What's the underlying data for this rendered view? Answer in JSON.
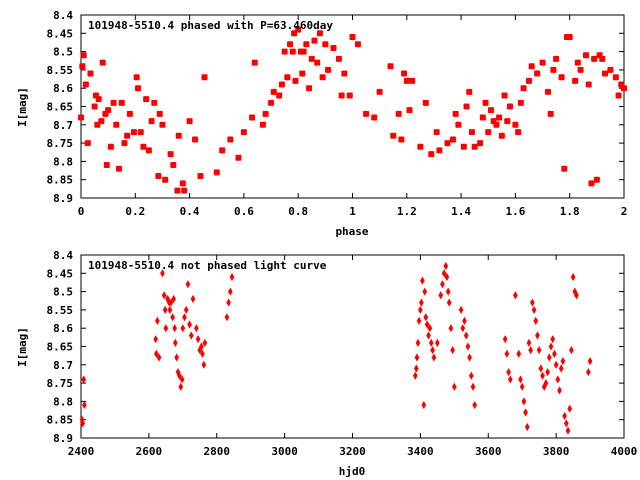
{
  "chart_data": [
    {
      "type": "scatter",
      "title": "101948-5510.4 phased with P=63.460day",
      "xlabel": "phase",
      "ylabel": "I[mag]",
      "xlim": [
        0,
        2
      ],
      "ylim": [
        8.4,
        8.9
      ],
      "y_inverted": true,
      "x_ticks": [
        "0",
        "0.2",
        "0.4",
        "0.6",
        "0.8",
        "1",
        "1.2",
        "1.4",
        "1.6",
        "1.8",
        "2"
      ],
      "y_ticks": [
        "8.4",
        "8.45",
        "8.5",
        "8.55",
        "8.6",
        "8.65",
        "8.7",
        "8.75",
        "8.8",
        "8.85",
        "8.9"
      ],
      "marker_color": "#ff0000",
      "marker_shape": "filled-square",
      "points": [
        [
          0.0,
          8.68
        ],
        [
          0.005,
          8.54
        ],
        [
          0.01,
          8.51
        ],
        [
          0.018,
          8.59
        ],
        [
          0.025,
          8.75
        ],
        [
          0.035,
          8.56
        ],
        [
          0.05,
          8.65
        ],
        [
          0.055,
          8.62
        ],
        [
          0.06,
          8.7
        ],
        [
          0.065,
          8.63
        ],
        [
          0.075,
          8.69
        ],
        [
          0.08,
          8.53
        ],
        [
          0.09,
          8.67
        ],
        [
          0.095,
          8.81
        ],
        [
          0.1,
          8.66
        ],
        [
          0.11,
          8.76
        ],
        [
          0.12,
          8.64
        ],
        [
          0.13,
          8.7
        ],
        [
          0.14,
          8.82
        ],
        [
          0.15,
          8.64
        ],
        [
          0.16,
          8.75
        ],
        [
          0.17,
          8.73
        ],
        [
          0.18,
          8.67
        ],
        [
          0.195,
          8.72
        ],
        [
          0.205,
          8.57
        ],
        [
          0.21,
          8.6
        ],
        [
          0.22,
          8.72
        ],
        [
          0.23,
          8.76
        ],
        [
          0.24,
          8.63
        ],
        [
          0.25,
          8.77
        ],
        [
          0.26,
          8.69
        ],
        [
          0.27,
          8.64
        ],
        [
          0.285,
          8.84
        ],
        [
          0.29,
          8.67
        ],
        [
          0.3,
          8.7
        ],
        [
          0.31,
          8.85
        ],
        [
          0.33,
          8.78
        ],
        [
          0.34,
          8.81
        ],
        [
          0.355,
          8.88
        ],
        [
          0.36,
          8.73
        ],
        [
          0.375,
          8.86
        ],
        [
          0.38,
          8.88
        ],
        [
          0.4,
          8.69
        ],
        [
          0.42,
          8.74
        ],
        [
          0.44,
          8.84
        ],
        [
          0.455,
          8.57
        ],
        [
          0.5,
          8.83
        ],
        [
          0.52,
          8.77
        ],
        [
          0.55,
          8.74
        ],
        [
          0.58,
          8.79
        ],
        [
          0.6,
          8.72
        ],
        [
          0.63,
          8.68
        ],
        [
          0.64,
          8.53
        ],
        [
          0.67,
          8.7
        ],
        [
          0.68,
          8.67
        ],
        [
          0.7,
          8.64
        ],
        [
          0.71,
          8.61
        ],
        [
          0.73,
          8.62
        ],
        [
          0.74,
          8.59
        ],
        [
          0.75,
          8.5
        ],
        [
          0.76,
          8.57
        ],
        [
          0.77,
          8.48
        ],
        [
          0.78,
          8.5
        ],
        [
          0.785,
          8.45
        ],
        [
          0.79,
          8.58
        ],
        [
          0.8,
          8.44
        ],
        [
          0.81,
          8.5
        ],
        [
          0.815,
          8.56
        ],
        [
          0.82,
          8.5
        ],
        [
          0.83,
          8.48
        ],
        [
          0.84,
          8.6
        ],
        [
          0.85,
          8.52
        ],
        [
          0.86,
          8.47
        ],
        [
          0.87,
          8.53
        ],
        [
          0.88,
          8.45
        ],
        [
          0.89,
          8.57
        ],
        [
          0.9,
          8.48
        ],
        [
          0.91,
          8.55
        ],
        [
          0.93,
          8.49
        ],
        [
          0.95,
          8.52
        ],
        [
          0.96,
          8.62
        ],
        [
          0.97,
          8.56
        ],
        [
          0.99,
          8.62
        ],
        [
          1.0,
          8.46
        ],
        [
          1.02,
          8.48
        ],
        [
          1.05,
          8.67
        ],
        [
          1.08,
          8.68
        ],
        [
          1.1,
          8.61
        ],
        [
          1.14,
          8.54
        ],
        [
          1.15,
          8.73
        ],
        [
          1.17,
          8.67
        ],
        [
          1.18,
          8.74
        ],
        [
          1.19,
          8.56
        ],
        [
          1.2,
          8.58
        ],
        [
          1.21,
          8.66
        ],
        [
          1.22,
          8.58
        ],
        [
          1.25,
          8.76
        ],
        [
          1.27,
          8.64
        ],
        [
          1.29,
          8.78
        ],
        [
          1.31,
          8.72
        ],
        [
          1.32,
          8.77
        ],
        [
          1.35,
          8.75
        ],
        [
          1.37,
          8.74
        ],
        [
          1.38,
          8.67
        ],
        [
          1.39,
          8.7
        ],
        [
          1.41,
          8.76
        ],
        [
          1.42,
          8.65
        ],
        [
          1.43,
          8.61
        ],
        [
          1.44,
          8.72
        ],
        [
          1.45,
          8.76
        ],
        [
          1.47,
          8.75
        ],
        [
          1.48,
          8.68
        ],
        [
          1.49,
          8.64
        ],
        [
          1.5,
          8.72
        ],
        [
          1.51,
          8.66
        ],
        [
          1.52,
          8.69
        ],
        [
          1.53,
          8.7
        ],
        [
          1.54,
          8.68
        ],
        [
          1.55,
          8.73
        ],
        [
          1.56,
          8.62
        ],
        [
          1.57,
          8.69
        ],
        [
          1.58,
          8.65
        ],
        [
          1.6,
          8.7
        ],
        [
          1.61,
          8.72
        ],
        [
          1.62,
          8.64
        ],
        [
          1.63,
          8.6
        ],
        [
          1.65,
          8.58
        ],
        [
          1.66,
          8.54
        ],
        [
          1.68,
          8.56
        ],
        [
          1.7,
          8.53
        ],
        [
          1.72,
          8.61
        ],
        [
          1.73,
          8.67
        ],
        [
          1.74,
          8.55
        ],
        [
          1.75,
          8.52
        ],
        [
          1.77,
          8.57
        ],
        [
          1.78,
          8.82
        ],
        [
          1.79,
          8.46
        ],
        [
          1.8,
          8.46
        ],
        [
          1.82,
          8.58
        ],
        [
          1.83,
          8.53
        ],
        [
          1.84,
          8.55
        ],
        [
          1.86,
          8.51
        ],
        [
          1.87,
          8.59
        ],
        [
          1.88,
          8.86
        ],
        [
          1.89,
          8.52
        ],
        [
          1.9,
          8.85
        ],
        [
          1.91,
          8.51
        ],
        [
          1.92,
          8.52
        ],
        [
          1.93,
          8.56
        ],
        [
          1.95,
          8.55
        ],
        [
          1.97,
          8.57
        ],
        [
          1.98,
          8.62
        ],
        [
          1.99,
          8.59
        ],
        [
          2.0,
          8.6
        ]
      ]
    },
    {
      "type": "scatter",
      "title": "101948-5510.4 not phased light curve",
      "xlabel": "hjd0",
      "ylabel": "I[mag]",
      "xlim": [
        2400,
        4000
      ],
      "ylim": [
        8.4,
        8.9
      ],
      "y_inverted": true,
      "x_ticks": [
        "2400",
        "2600",
        "2800",
        "3000",
        "3200",
        "3400",
        "3600",
        "3800",
        "4000"
      ],
      "y_ticks": [
        "8.4",
        "8.45",
        "8.5",
        "8.55",
        "8.6",
        "8.65",
        "8.7",
        "8.75",
        "8.8",
        "8.85",
        "8.9"
      ],
      "marker_color": "#ff0000",
      "marker_shape": "diamond",
      "points": [
        [
          2403,
          8.85
        ],
        [
          2405,
          8.86
        ],
        [
          2408,
          8.74
        ],
        [
          2410,
          8.81
        ],
        [
          2620,
          8.63
        ],
        [
          2622,
          8.67
        ],
        [
          2625,
          8.58
        ],
        [
          2630,
          8.68
        ],
        [
          2640,
          8.45
        ],
        [
          2645,
          8.51
        ],
        [
          2648,
          8.55
        ],
        [
          2650,
          8.6
        ],
        [
          2655,
          8.52
        ],
        [
          2660,
          8.53
        ],
        [
          2662,
          8.55
        ],
        [
          2665,
          8.53
        ],
        [
          2670,
          8.57
        ],
        [
          2673,
          8.52
        ],
        [
          2676,
          8.6
        ],
        [
          2678,
          8.64
        ],
        [
          2682,
          8.68
        ],
        [
          2686,
          8.72
        ],
        [
          2690,
          8.73
        ],
        [
          2694,
          8.76
        ],
        [
          2698,
          8.74
        ],
        [
          2700,
          8.6
        ],
        [
          2705,
          8.57
        ],
        [
          2710,
          8.55
        ],
        [
          2715,
          8.48
        ],
        [
          2720,
          8.59
        ],
        [
          2725,
          8.62
        ],
        [
          2730,
          8.52
        ],
        [
          2740,
          8.6
        ],
        [
          2745,
          8.63
        ],
        [
          2750,
          8.66
        ],
        [
          2755,
          8.65
        ],
        [
          2758,
          8.67
        ],
        [
          2762,
          8.7
        ],
        [
          2765,
          8.64
        ],
        [
          2830,
          8.57
        ],
        [
          2835,
          8.53
        ],
        [
          2840,
          8.5
        ],
        [
          2845,
          8.46
        ],
        [
          3385,
          8.73
        ],
        [
          3388,
          8.71
        ],
        [
          3390,
          8.68
        ],
        [
          3393,
          8.64
        ],
        [
          3396,
          8.58
        ],
        [
          3400,
          8.55
        ],
        [
          3403,
          8.53
        ],
        [
          3406,
          8.47
        ],
        [
          3410,
          8.81
        ],
        [
          3413,
          8.5
        ],
        [
          3416,
          8.57
        ],
        [
          3420,
          8.59
        ],
        [
          3424,
          8.62
        ],
        [
          3428,
          8.6
        ],
        [
          3432,
          8.64
        ],
        [
          3436,
          8.66
        ],
        [
          3440,
          8.68
        ],
        [
          3450,
          8.64
        ],
        [
          3460,
          8.51
        ],
        [
          3465,
          8.48
        ],
        [
          3470,
          8.45
        ],
        [
          3475,
          8.43
        ],
        [
          3478,
          8.46
        ],
        [
          3482,
          8.5
        ],
        [
          3485,
          8.53
        ],
        [
          3490,
          8.6
        ],
        [
          3495,
          8.66
        ],
        [
          3500,
          8.76
        ],
        [
          3520,
          8.55
        ],
        [
          3525,
          8.6
        ],
        [
          3530,
          8.58
        ],
        [
          3535,
          8.62
        ],
        [
          3540,
          8.65
        ],
        [
          3545,
          8.68
        ],
        [
          3550,
          8.73
        ],
        [
          3555,
          8.76
        ],
        [
          3560,
          8.81
        ],
        [
          3650,
          8.63
        ],
        [
          3655,
          8.67
        ],
        [
          3660,
          8.72
        ],
        [
          3665,
          8.74
        ],
        [
          3680,
          8.51
        ],
        [
          3690,
          8.67
        ],
        [
          3695,
          8.74
        ],
        [
          3700,
          8.76
        ],
        [
          3705,
          8.8
        ],
        [
          3710,
          8.83
        ],
        [
          3715,
          8.87
        ],
        [
          3720,
          8.64
        ],
        [
          3725,
          8.66
        ],
        [
          3730,
          8.53
        ],
        [
          3735,
          8.55
        ],
        [
          3740,
          8.58
        ],
        [
          3745,
          8.62
        ],
        [
          3750,
          8.66
        ],
        [
          3755,
          8.71
        ],
        [
          3760,
          8.73
        ],
        [
          3765,
          8.76
        ],
        [
          3770,
          8.75
        ],
        [
          3775,
          8.72
        ],
        [
          3780,
          8.68
        ],
        [
          3785,
          8.65
        ],
        [
          3790,
          8.63
        ],
        [
          3795,
          8.67
        ],
        [
          3800,
          8.7
        ],
        [
          3805,
          8.74
        ],
        [
          3810,
          8.77
        ],
        [
          3815,
          8.71
        ],
        [
          3820,
          8.69
        ],
        [
          3825,
          8.84
        ],
        [
          3830,
          8.86
        ],
        [
          3835,
          8.88
        ],
        [
          3840,
          8.82
        ],
        [
          3845,
          8.66
        ],
        [
          3850,
          8.46
        ],
        [
          3855,
          8.5
        ],
        [
          3860,
          8.51
        ],
        [
          3895,
          8.72
        ],
        [
          3900,
          8.69
        ]
      ]
    }
  ]
}
